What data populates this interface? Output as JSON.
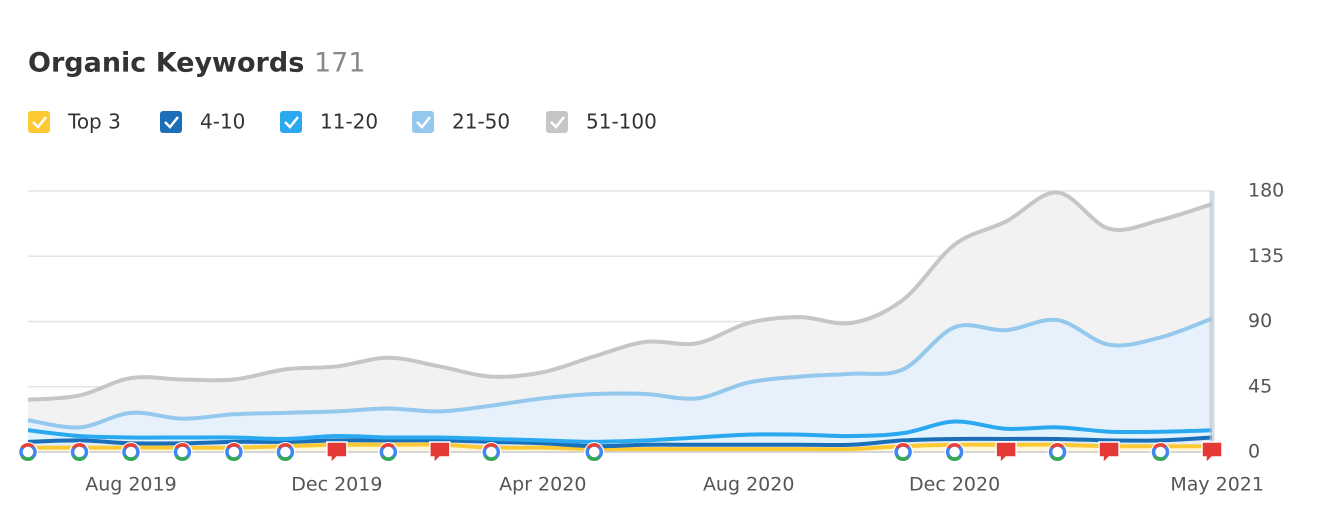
{
  "chart_data": {
    "type": "area",
    "stacked": true,
    "title": "Organic Keywords",
    "total": 171,
    "categories": [
      null,
      null,
      "Aug 2019",
      null,
      null,
      null,
      "Dec 2019",
      null,
      null,
      null,
      "Apr 2020",
      null,
      null,
      null,
      "Aug 2020",
      null,
      null,
      null,
      "Dec 2020",
      null,
      null,
      null,
      null,
      "May 2021"
    ],
    "series": [
      {
        "name": "Top 3",
        "color": "#fdc932",
        "values": [
          3,
          3,
          3,
          3,
          3,
          4,
          5,
          5,
          5,
          3,
          3,
          2,
          2,
          2,
          2,
          2,
          2,
          4,
          5,
          5,
          5,
          4,
          4,
          4
        ]
      },
      {
        "name": "4-10",
        "color": "#1a6fb8",
        "values": [
          4,
          5,
          3,
          3,
          4,
          3,
          3,
          3,
          3,
          4,
          3,
          2,
          3,
          3,
          3,
          3,
          3,
          4,
          4,
          4,
          4,
          4,
          4,
          6
        ]
      },
      {
        "name": "11-20",
        "color": "#2aa9f0",
        "values": [
          8,
          3,
          4,
          4,
          3,
          2,
          3,
          2,
          2,
          2,
          2,
          3,
          3,
          5,
          7,
          7,
          6,
          5,
          12,
          7,
          8,
          6,
          6,
          5
        ]
      },
      {
        "name": "21-50",
        "color": "#94c8ec",
        "values": [
          7,
          6,
          17,
          13,
          16,
          18,
          17,
          20,
          18,
          23,
          29,
          33,
          32,
          27,
          36,
          40,
          43,
          44,
          65,
          68,
          74,
          60,
          65,
          77
        ]
      },
      {
        "name": "51-100",
        "color": "#c6c6c6",
        "values": [
          14,
          22,
          24,
          27,
          24,
          30,
          31,
          35,
          31,
          20,
          18,
          26,
          36,
          38,
          41,
          41,
          35,
          48,
          57,
          75,
          88,
          80,
          81,
          79
        ]
      }
    ],
    "ylim": [
      0,
      180
    ],
    "yticks": [
      0,
      45,
      90,
      135,
      180
    ],
    "grid": true
  }
}
